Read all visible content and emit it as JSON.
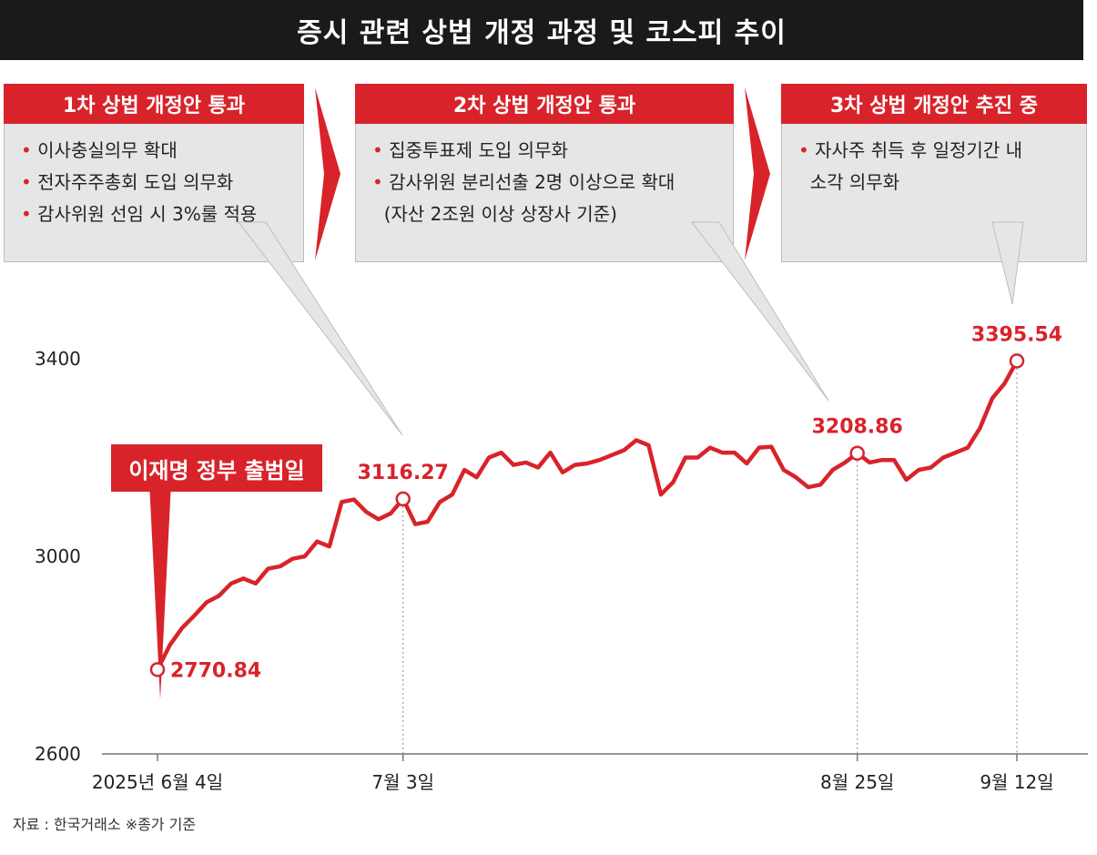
{
  "title": "증시 관련 상법 개정 과정 및 코스피 추이",
  "callouts": [
    {
      "head": "1차 상법 개정안 통과",
      "items": [
        "이사충실의무 확대",
        "전자주주총회 도입 의무화",
        "감사위원 선임 시 3%룰 적용"
      ]
    },
    {
      "head": "2차 상법 개정안 통과",
      "items": [
        "집중투표제 도입 의무화",
        "감사위원 분리선출 2명 이상으로 확대",
        "(자산 2조원 이상 상장사 기준)"
      ]
    },
    {
      "head": "3차 상법 개정안 추진 중",
      "items": [
        "자사주 취득 후 일정기간 내",
        "소각 의무화"
      ]
    }
  ],
  "event_label": "이재명 정부 출범일",
  "source_note": "자료 : 한국거래소 ※종가 기준",
  "colors": {
    "accent": "#d8232a",
    "title_bg": "#1a1a1a",
    "callout_bg": "#e6e6e6"
  },
  "chart_data": {
    "type": "line",
    "ylim": [
      2600,
      3400
    ],
    "yticks": [
      "2600",
      "3000",
      "3400"
    ],
    "x_ticks": [
      "2025년 6월 4일",
      "7월 3일",
      "8월 25일",
      "9월 12일"
    ],
    "x_tick_index": [
      0,
      20,
      57,
      70
    ],
    "annotations": [
      {
        "index": 0,
        "label": "2770.84"
      },
      {
        "index": 20,
        "label": "3116.27"
      },
      {
        "index": 57,
        "label": "3208.86"
      },
      {
        "index": 70,
        "label": "3395.54"
      }
    ],
    "series": [
      {
        "values": [
          2770.84,
          2820,
          2855,
          2880,
          2907,
          2920,
          2945,
          2955,
          2945,
          2975,
          2980,
          2995,
          3000,
          3030,
          3020,
          3110,
          3115,
          3090,
          3075,
          3087,
          3116.27,
          3065,
          3070,
          3110,
          3125,
          3175,
          3160,
          3200,
          3210,
          3185,
          3190,
          3180,
          3210,
          3170,
          3185,
          3188,
          3195,
          3205,
          3215,
          3235,
          3225,
          3125,
          3150,
          3200,
          3200,
          3220,
          3210,
          3210,
          3188,
          3220,
          3222,
          3175,
          3160,
          3140,
          3145,
          3175,
          3190,
          3208.86,
          3190,
          3195,
          3195,
          3155,
          3175,
          3180,
          3200,
          3210,
          3220,
          3260,
          3320,
          3350,
          3395.54
        ]
      }
    ]
  }
}
